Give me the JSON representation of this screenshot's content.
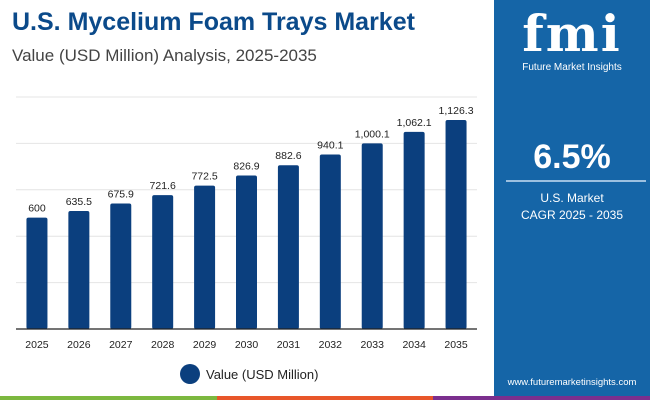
{
  "header": {
    "title": "U.S. Mycelium Foam Trays Market",
    "subtitle": "Value (USD Million) Analysis, 2025-2035"
  },
  "chart_data": {
    "type": "bar",
    "categories": [
      "2025",
      "2026",
      "2027",
      "2028",
      "2029",
      "2030",
      "2031",
      "2032",
      "2033",
      "2034",
      "2035"
    ],
    "series": [
      {
        "name": "Value (USD Million)",
        "values": [
          600,
          635.5,
          675.9,
          721.6,
          772.5,
          826.9,
          882.6,
          940.1,
          1000.1,
          1062.1,
          1126.3
        ]
      }
    ],
    "data_labels": [
      "600",
      "635.5",
      "675.9",
      "721.6",
      "772.5",
      "826.9",
      "882.6",
      "940.1",
      "1,000.1",
      "1,062.1",
      "1,126.3"
    ],
    "ylim": [
      0,
      1250
    ],
    "grid": true,
    "legend_placement": "bottom",
    "bar_color": "#0b3f7e"
  },
  "panel": {
    "logo_mark": "fmi",
    "logo_name": "Future Market Insights",
    "cagr": "6.5%",
    "market_line1": "U.S. Market",
    "market_line2": "CAGR 2025 - 2035",
    "url": "www.futuremarketinsights.com",
    "color": "#1565a7"
  },
  "stripe_colors": [
    "#7cb83f",
    "#e8562a",
    "#7b2f8e"
  ]
}
